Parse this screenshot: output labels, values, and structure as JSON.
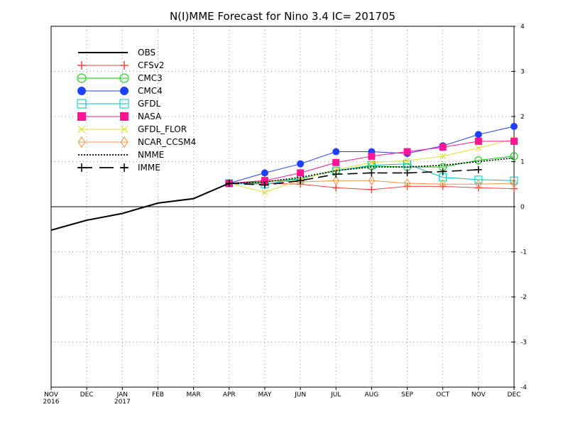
{
  "chart_data": {
    "type": "line",
    "title": "N(I)MME Forecast for Nino 3.4  IC= 201705",
    "xlabel": "",
    "ylabel": "",
    "x": [
      "NOV",
      "DEC",
      "JAN",
      "FEB",
      "MAR",
      "APR",
      "MAY",
      "JUN",
      "JUL",
      "AUG",
      "SEP",
      "OCT",
      "NOV",
      "DEC"
    ],
    "x_year_labels": {
      "0": "2016",
      "2": "2017"
    },
    "ylim": [
      -4,
      4
    ],
    "yticks": [
      "-4",
      "-3",
      "-2",
      "-1",
      "0",
      "1",
      "2",
      "3",
      "4"
    ],
    "y_axis_side": "right",
    "grid": true,
    "zero_line": true,
    "legend_position": "top-left",
    "series": [
      {
        "name": "OBS",
        "color": "#000000",
        "marker": "none",
        "dash": "solid",
        "values": [
          -0.52,
          -0.3,
          -0.15,
          0.08,
          0.18,
          0.52,
          null,
          null,
          null,
          null,
          null,
          null,
          null,
          null
        ]
      },
      {
        "name": "CFSv2",
        "color": "#ff4040",
        "marker": "plus",
        "dash": "solid",
        "values": [
          null,
          null,
          null,
          null,
          null,
          0.52,
          0.52,
          0.5,
          0.42,
          0.38,
          0.45,
          0.45,
          0.42,
          0.4
        ]
      },
      {
        "name": "CMC3",
        "color": "#00cc00",
        "marker": "open-circle",
        "dash": "solid",
        "values": [
          null,
          null,
          null,
          null,
          null,
          0.52,
          0.55,
          0.62,
          0.8,
          0.9,
          0.88,
          0.88,
          1.03,
          1.12
        ]
      },
      {
        "name": "CMC4",
        "color": "#2040ff",
        "marker": "filled-circle",
        "dash": "solid",
        "values": [
          null,
          null,
          null,
          null,
          null,
          0.52,
          0.75,
          0.95,
          1.22,
          1.22,
          1.18,
          1.35,
          1.6,
          1.78
        ]
      },
      {
        "name": "GFDL",
        "color": "#00c0c0",
        "marker": "open-square",
        "dash": "solid",
        "values": [
          null,
          null,
          null,
          null,
          null,
          0.52,
          0.5,
          0.62,
          0.8,
          0.92,
          0.95,
          0.65,
          0.6,
          0.58
        ]
      },
      {
        "name": "NASA",
        "color": "#ff1493",
        "marker": "filled-square",
        "dash": "solid",
        "values": [
          null,
          null,
          null,
          null,
          null,
          0.52,
          0.58,
          0.75,
          0.98,
          1.12,
          1.22,
          1.32,
          1.45,
          1.45
        ]
      },
      {
        "name": "GFDL_FLOR",
        "color": "#e0e040",
        "marker": "x",
        "dash": "solid",
        "values": [
          null,
          null,
          null,
          null,
          null,
          0.52,
          0.32,
          0.6,
          0.82,
          0.98,
          1.02,
          1.12,
          1.3,
          1.5
        ]
      },
      {
        "name": "NCAR_CCSM4",
        "color": "#ff9040",
        "marker": "diamond",
        "dash": "solid",
        "values": [
          null,
          null,
          null,
          null,
          null,
          0.52,
          0.58,
          0.55,
          0.58,
          0.58,
          0.52,
          0.5,
          0.5,
          0.52
        ]
      },
      {
        "name": "NMME",
        "color": "#000000",
        "marker": "none",
        "dash": "dotted",
        "values": [
          null,
          null,
          null,
          null,
          null,
          0.52,
          0.55,
          0.65,
          0.8,
          0.88,
          0.88,
          0.92,
          1.0,
          1.08
        ]
      },
      {
        "name": "IMME",
        "color": "#000000",
        "marker": "plus",
        "dash": "dashed",
        "values": [
          null,
          null,
          null,
          null,
          null,
          0.52,
          0.48,
          0.58,
          0.72,
          0.75,
          0.75,
          0.78,
          0.82,
          null
        ]
      }
    ]
  }
}
